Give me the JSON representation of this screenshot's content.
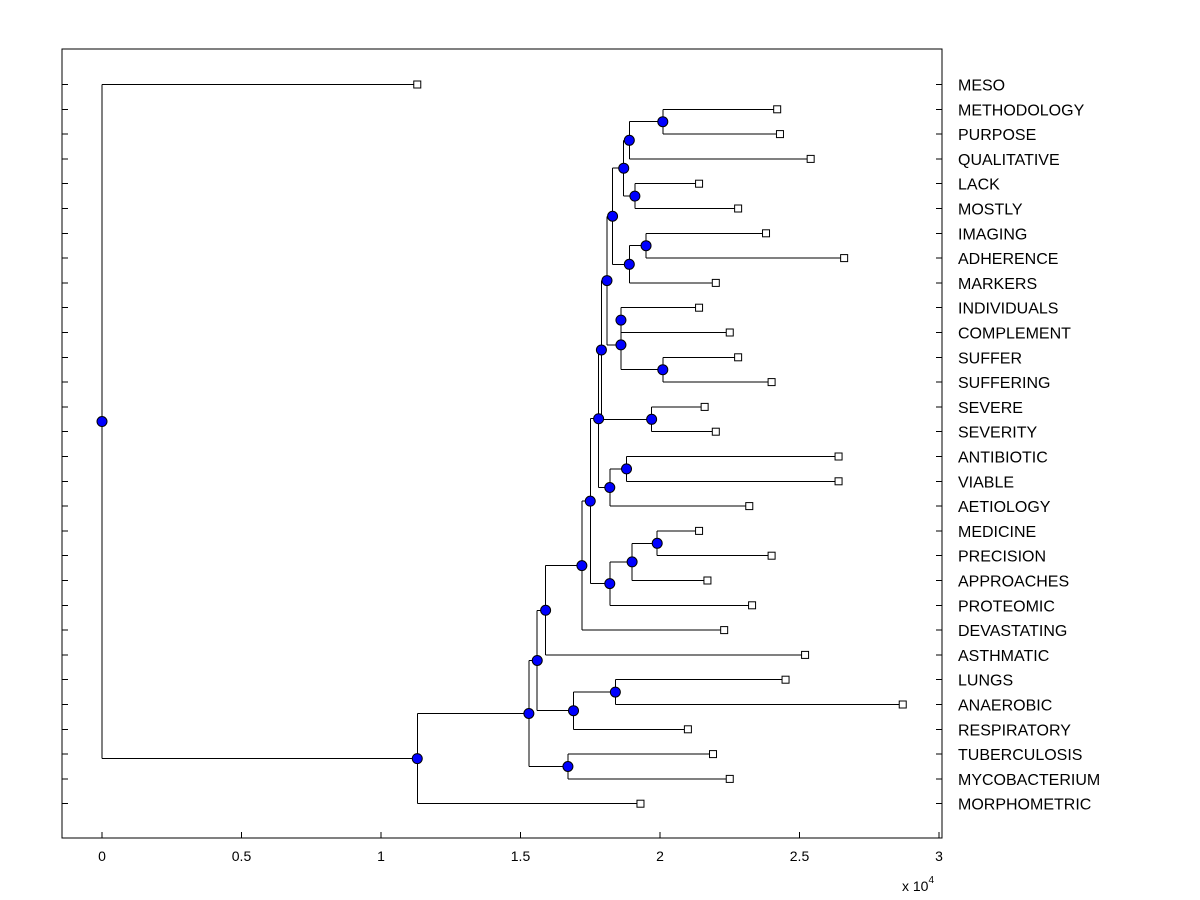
{
  "chart_data": {
    "type": "dendrogram",
    "title": "",
    "xlabel": "",
    "ylabel": "",
    "xlim": [
      -0.14,
      3.0
    ],
    "x_ticks": [
      "0",
      "0.5",
      "1",
      "1.5",
      "2",
      "2.5",
      "3"
    ],
    "x_tick_values": [
      0,
      0.5,
      1,
      1.5,
      2,
      2.5,
      3
    ],
    "x_scale_base": "x 10",
    "x_scale_exp": "4",
    "leaf_marker": "open-square",
    "internal_marker": "filled-circle",
    "marker_color": "#0000ff",
    "leaves": [
      {
        "id": "MESO",
        "label": "MESO",
        "x": 1.13
      },
      {
        "id": "METHODOLOGY",
        "label": "METHODOLOGY",
        "x": 2.42
      },
      {
        "id": "PURPOSE",
        "label": "PURPOSE",
        "x": 2.43
      },
      {
        "id": "QUALITATIVE",
        "label": "QUALITATIVE",
        "x": 2.54
      },
      {
        "id": "LACK",
        "label": "LACK",
        "x": 2.14
      },
      {
        "id": "MOSTLY",
        "label": "MOSTLY",
        "x": 2.28
      },
      {
        "id": "IMAGING",
        "label": "IMAGING",
        "x": 2.38
      },
      {
        "id": "ADHERENCE",
        "label": "ADHERENCE",
        "x": 2.66
      },
      {
        "id": "MARKERS",
        "label": "MARKERS",
        "x": 2.2
      },
      {
        "id": "INDIVIDUALS",
        "label": "INDIVIDUALS",
        "x": 2.14
      },
      {
        "id": "COMPLEMENT",
        "label": "COMPLEMENT",
        "x": 2.25
      },
      {
        "id": "SUFFER",
        "label": "SUFFER",
        "x": 2.28
      },
      {
        "id": "SUFFERING",
        "label": "SUFFERING",
        "x": 2.4
      },
      {
        "id": "SEVERE",
        "label": "SEVERE",
        "x": 2.16
      },
      {
        "id": "SEVERITY",
        "label": "SEVERITY",
        "x": 2.2
      },
      {
        "id": "ANTIBIOTIC",
        "label": "ANTIBIOTIC",
        "x": 2.64
      },
      {
        "id": "VIABLE",
        "label": "VIABLE",
        "x": 2.64
      },
      {
        "id": "AETIOLOGY",
        "label": "AETIOLOGY",
        "x": 2.32
      },
      {
        "id": "MEDICINE",
        "label": "MEDICINE",
        "x": 2.14
      },
      {
        "id": "PRECISION",
        "label": "PRECISION",
        "x": 2.4
      },
      {
        "id": "APPROACHES",
        "label": "APPROACHES",
        "x": 2.17
      },
      {
        "id": "PROTEOMIC",
        "label": "PROTEOMIC",
        "x": 2.33
      },
      {
        "id": "DEVASTATING",
        "label": "DEVASTATING",
        "x": 2.23
      },
      {
        "id": "ASTHMATIC",
        "label": "ASTHMATIC",
        "x": 2.52
      },
      {
        "id": "LUNGS",
        "label": "LUNGS",
        "x": 2.45
      },
      {
        "id": "ANAEROBIC",
        "label": "ANAEROBIC",
        "x": 2.87
      },
      {
        "id": "RESPIRATORY",
        "label": "RESPIRATORY",
        "x": 2.1
      },
      {
        "id": "TUBERCULOSIS",
        "label": "TUBERCULOSIS",
        "x": 2.19
      },
      {
        "id": "MYCOBACTERIUM",
        "label": "MYCOBACTERIUM",
        "x": 2.25
      },
      {
        "id": "MORPHOMETRIC",
        "label": "MORPHOMETRIC",
        "x": 1.93
      }
    ],
    "nodes": [
      {
        "id": "n_meth_purp",
        "x": 2.01,
        "children": [
          "METHODOLOGY",
          "PURPOSE"
        ]
      },
      {
        "id": "n_qual",
        "x": 1.89,
        "children": [
          "n_meth_purp",
          "QUALITATIVE"
        ]
      },
      {
        "id": "n_lack_most",
        "x": 1.91,
        "children": [
          "LACK",
          "MOSTLY"
        ]
      },
      {
        "id": "n_A",
        "x": 1.87,
        "children": [
          "n_qual",
          "n_lack_most"
        ]
      },
      {
        "id": "n_img_adh",
        "x": 1.95,
        "children": [
          "IMAGING",
          "ADHERENCE"
        ]
      },
      {
        "id": "n_markers",
        "x": 1.89,
        "children": [
          "n_img_adh",
          "MARKERS"
        ]
      },
      {
        "id": "n_B",
        "x": 1.83,
        "children": [
          "n_A",
          "n_markers"
        ]
      },
      {
        "id": "n_ind_comp",
        "x": 1.86,
        "children": [
          "INDIVIDUALS",
          "COMPLEMENT"
        ]
      },
      {
        "id": "n_suf",
        "x": 2.01,
        "children": [
          "SUFFER",
          "SUFFERING"
        ]
      },
      {
        "id": "n_C",
        "x": 1.86,
        "children": [
          "n_ind_comp",
          "n_suf"
        ]
      },
      {
        "id": "n_D",
        "x": 1.81,
        "children": [
          "n_B",
          "n_C"
        ]
      },
      {
        "id": "n_sev",
        "x": 1.97,
        "children": [
          "SEVERE",
          "SEVERITY"
        ]
      },
      {
        "id": "n_E",
        "x": 1.79,
        "children": [
          "n_D",
          "n_sev"
        ]
      },
      {
        "id": "n_anti_via",
        "x": 1.88,
        "children": [
          "ANTIBIOTIC",
          "VIABLE"
        ]
      },
      {
        "id": "n_aet",
        "x": 1.82,
        "children": [
          "n_anti_via",
          "AETIOLOGY"
        ]
      },
      {
        "id": "n_F",
        "x": 1.78,
        "children": [
          "n_E",
          "n_aet"
        ]
      },
      {
        "id": "n_med_prec",
        "x": 1.99,
        "children": [
          "MEDICINE",
          "PRECISION"
        ]
      },
      {
        "id": "n_appr",
        "x": 1.9,
        "children": [
          "n_med_prec",
          "APPROACHES"
        ]
      },
      {
        "id": "n_prot",
        "x": 1.82,
        "children": [
          "n_appr",
          "PROTEOMIC"
        ]
      },
      {
        "id": "n_G",
        "x": 1.75,
        "children": [
          "n_F",
          "n_prot"
        ]
      },
      {
        "id": "n_dev",
        "x": 1.72,
        "children": [
          "n_G",
          "DEVASTATING"
        ]
      },
      {
        "id": "n_asth",
        "x": 1.59,
        "children": [
          "n_dev",
          "ASTHMATIC"
        ]
      },
      {
        "id": "n_lung_ana",
        "x": 1.84,
        "children": [
          "LUNGS",
          "ANAEROBIC"
        ]
      },
      {
        "id": "n_resp",
        "x": 1.69,
        "children": [
          "n_lung_ana",
          "RESPIRATORY"
        ]
      },
      {
        "id": "n_H",
        "x": 1.56,
        "children": [
          "n_asth",
          "n_resp"
        ]
      },
      {
        "id": "n_tb_myco",
        "x": 1.67,
        "children": [
          "TUBERCULOSIS",
          "MYCOBACTERIUM"
        ]
      },
      {
        "id": "n_I",
        "x": 1.53,
        "children": [
          "n_H",
          "n_tb_myco"
        ]
      },
      {
        "id": "n_J",
        "x": 1.13,
        "children": [
          "n_I",
          "MORPHOMETRIC"
        ]
      },
      {
        "id": "n_root",
        "x": 0.0,
        "children": [
          "MESO",
          "n_J"
        ]
      }
    ]
  }
}
